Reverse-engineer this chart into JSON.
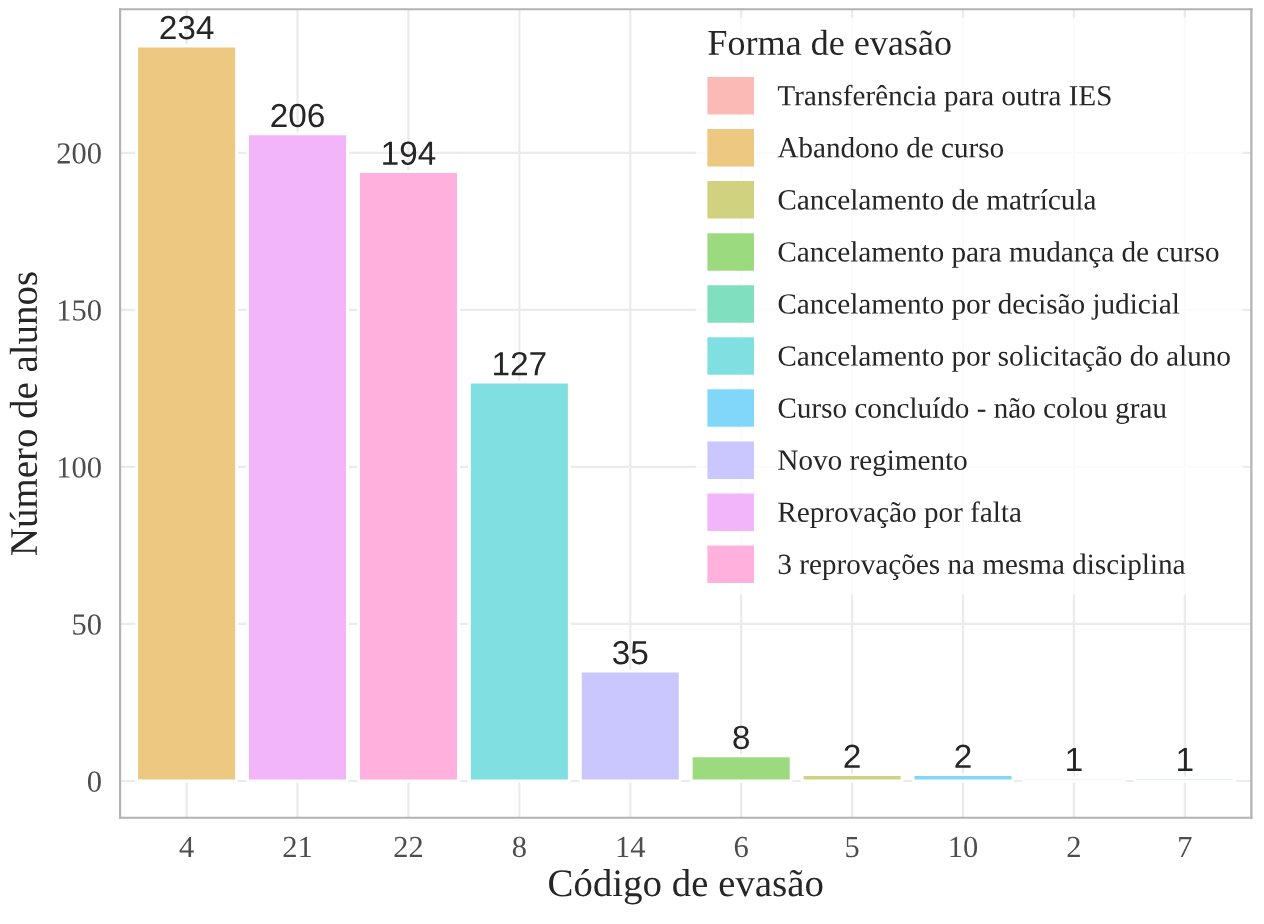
{
  "chart_data": {
    "type": "bar",
    "xlabel": "Código de evasão",
    "ylabel": "Número de alunos",
    "legend_title": "Forma de evasão",
    "categories": [
      "4",
      "21",
      "22",
      "8",
      "14",
      "6",
      "5",
      "10",
      "2",
      "7"
    ],
    "series": [
      {
        "name": "Transferência para outra IES",
        "color": "#fbbab6",
        "values": [
          null,
          null,
          null,
          null,
          null,
          null,
          null,
          null,
          1,
          null
        ]
      },
      {
        "name": "Abandono de curso",
        "color": "#ecc880",
        "values": [
          234,
          null,
          null,
          null,
          null,
          null,
          null,
          null,
          null,
          null
        ]
      },
      {
        "name": "Cancelamento de matrícula",
        "color": "#d1d280",
        "values": [
          null,
          null,
          null,
          null,
          null,
          null,
          2,
          null,
          null,
          null
        ]
      },
      {
        "name": "Cancelamento para mudança de curso",
        "color": "#9cda80",
        "values": [
          null,
          null,
          null,
          null,
          null,
          8,
          null,
          null,
          null,
          null
        ]
      },
      {
        "name": "Cancelamento por decisão judicial",
        "color": "#80dfbe",
        "values": [
          null,
          null,
          null,
          null,
          null,
          null,
          null,
          null,
          null,
          1
        ]
      },
      {
        "name": "Cancelamento por solicitação do aluno",
        "color": "#80dfe1",
        "values": [
          null,
          null,
          null,
          127,
          null,
          null,
          null,
          null,
          null,
          null
        ]
      },
      {
        "name": "Curso concluído - não colou grau",
        "color": "#80d7fa",
        "values": [
          null,
          null,
          null,
          null,
          null,
          null,
          null,
          2,
          null,
          null
        ]
      },
      {
        "name": "Novo regimento",
        "color": "#cac7ff",
        "values": [
          null,
          null,
          null,
          null,
          35,
          null,
          null,
          null,
          null,
          null
        ]
      },
      {
        "name": "Reprovação por falta",
        "color": "#f3b5f9",
        "values": [
          null,
          206,
          null,
          null,
          null,
          null,
          null,
          null,
          null,
          null
        ]
      },
      {
        "name": "3 reprovações na mesma disciplina",
        "color": "#ffb0dd",
        "values": [
          null,
          null,
          194,
          null,
          null,
          null,
          null,
          null,
          null,
          null
        ]
      }
    ],
    "ylim": [
      -11.7,
      245.7
    ],
    "yticks": [
      0,
      50,
      100,
      150,
      200
    ],
    "grid": true,
    "legend": "top right",
    "data_labels": true
  }
}
